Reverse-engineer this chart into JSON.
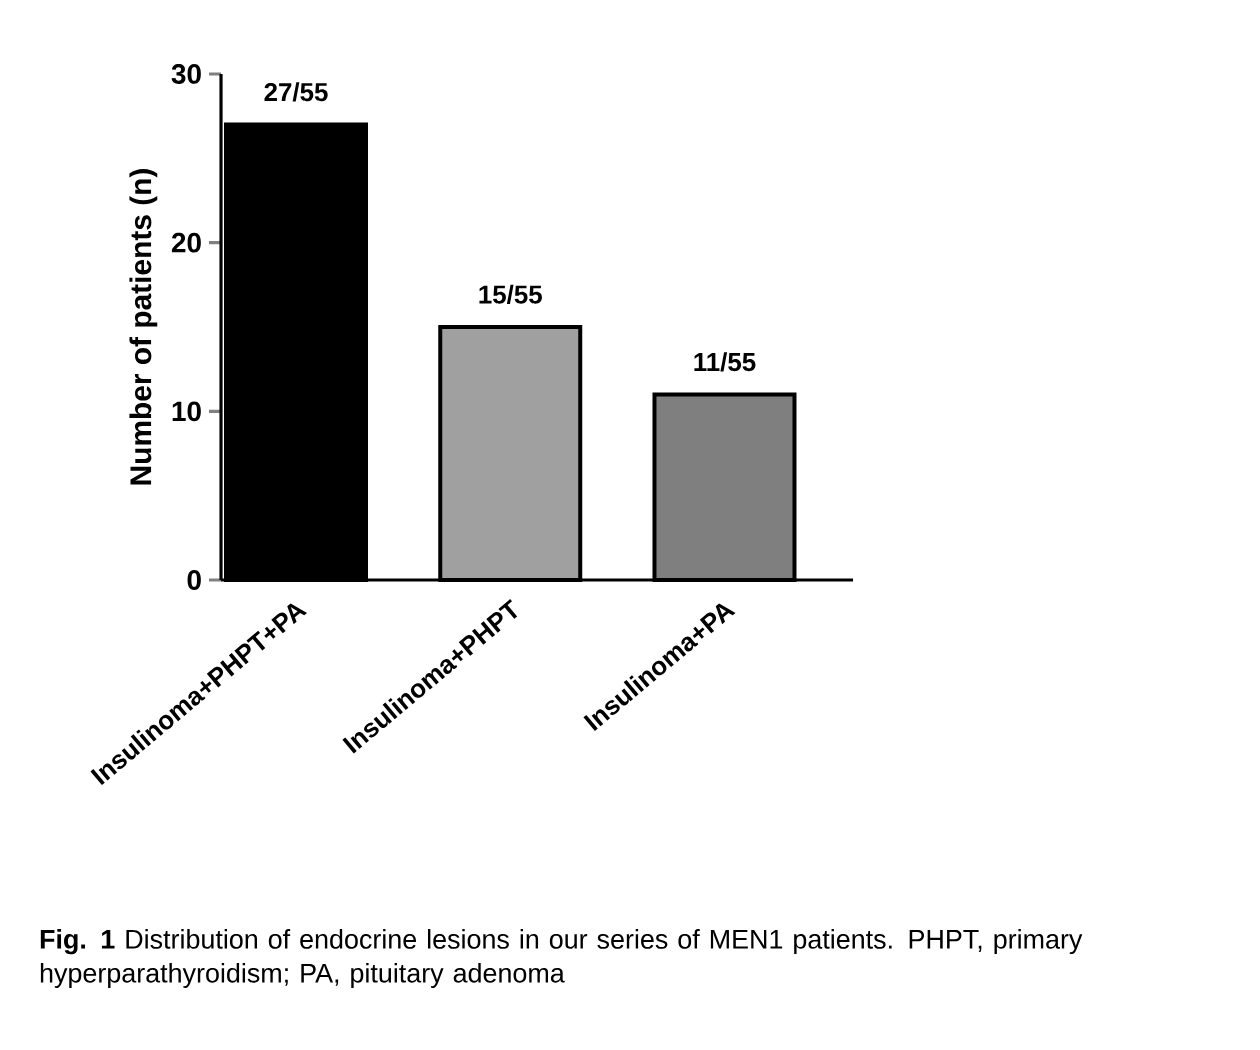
{
  "chart_data": {
    "type": "bar",
    "ylabel": "Number of patients (n)",
    "categories": [
      "Insulinoma+PHPT+PA",
      "Insulinoma+PHPT",
      "Insulinoma+PA"
    ],
    "values": [
      27,
      15,
      11
    ],
    "colors": [
      "#000000",
      "#a0a0a0",
      "#7f7f7f"
    ],
    "value_labels": [
      "27/55",
      "15/55",
      "11/55"
    ],
    "ylim": [
      0,
      30
    ],
    "yticks": [
      0,
      10,
      20,
      30
    ],
    "annotations": [
      "**Fig. 1** Distribution of endocrine lesions in our series of MEN1 patients. PHPT, primary hyperparathyroidism; PA, pituitary adenoma"
    ]
  }
}
